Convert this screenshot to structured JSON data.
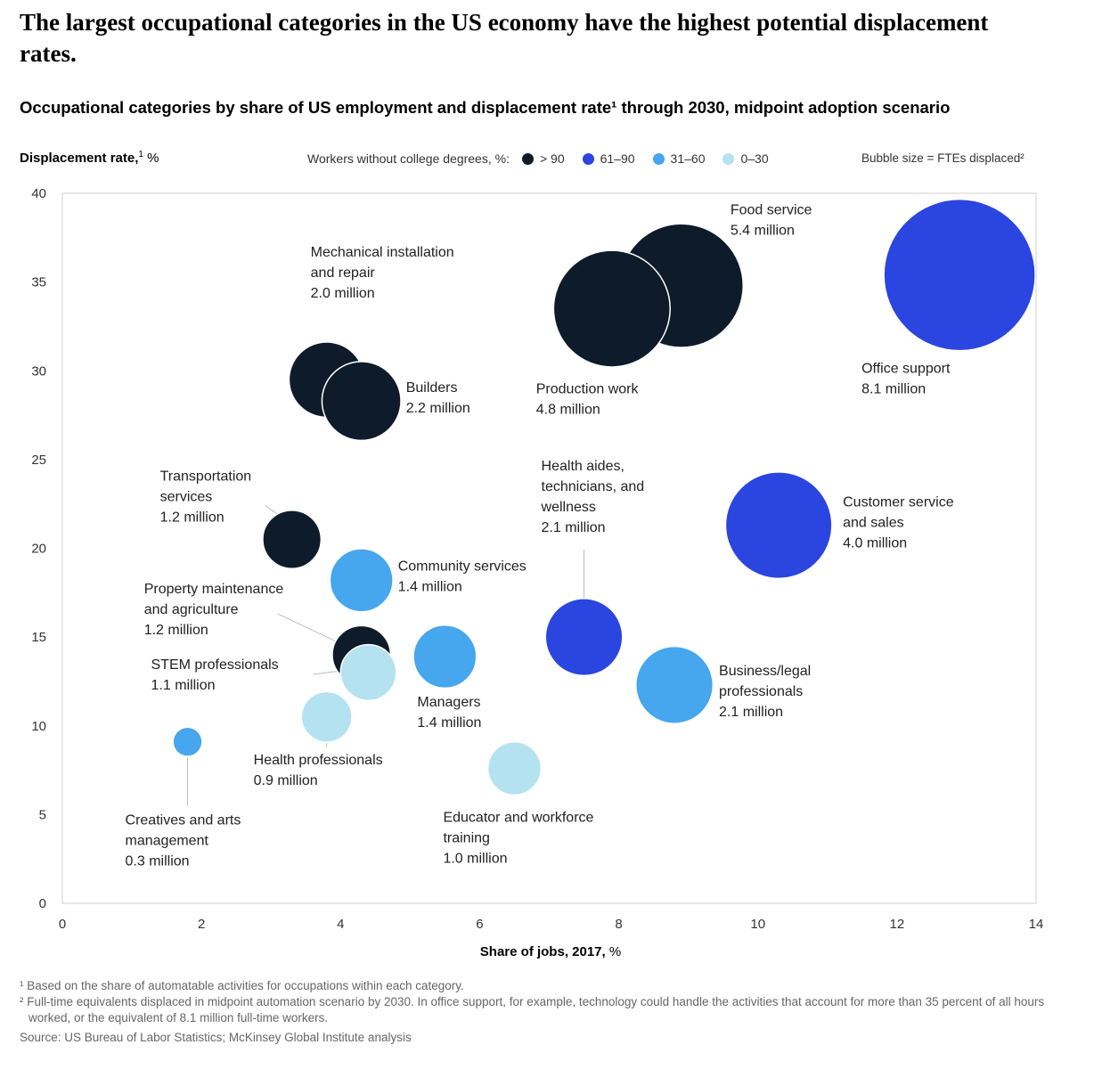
{
  "title": "The largest occupational categories in the US economy have the highest potential displacement rates.",
  "subtitle": "Occupational categories by share of US employment and displacement rate¹ through 2030, midpoint adoption scenario",
  "y_label_bold": "Displacement rate,",
  "y_label_sup": "1",
  "y_label_unit": " %",
  "x_label_bold": "Share of jobs, 2017,",
  "x_label_unit": " %",
  "legend": {
    "title": "Workers without college degrees, %:",
    "items": [
      {
        "label": "> 90",
        "color": "#0d1b2a"
      },
      {
        "label": "61–90",
        "color": "#2a45e0"
      },
      {
        "label": "31–60",
        "color": "#46a6ee"
      },
      {
        "label": "0–30",
        "color": "#b4e2f0"
      }
    ],
    "bubble_size": "Bubble size = FTEs displaced²"
  },
  "footnotes": {
    "f1": "¹ Based on the share of automatable activities for occupations within each category.",
    "f2": "² Full-time equivalents displaced in midpoint automation scenario by 2030. In office support, for example, technology could handle the activities that account for more than 35 percent of all hours worked, or the equivalent of 8.1 million full-time workers.",
    "source": "Source: US Bureau of Labor Statistics; McKinsey Global Institute analysis"
  },
  "chart_data": {
    "type": "scatter",
    "x_label": "Share of jobs, 2017, %",
    "y_label": "Displacement rate, %",
    "xlim": [
      0,
      14
    ],
    "ylim": [
      0,
      40
    ],
    "x_ticks": [
      0,
      2,
      4,
      6,
      8,
      10,
      12,
      14
    ],
    "y_ticks": [
      0,
      5,
      10,
      15,
      20,
      25,
      30,
      35,
      40
    ],
    "bubble_size": "FTEs displaced, million",
    "points": [
      {
        "name": "Office support",
        "x": 12.9,
        "y": 35.4,
        "fte_m": 8.1,
        "group": "61–90",
        "color": "#2a45e0",
        "label": [
          "Office support",
          "8.1 million"
        ]
      },
      {
        "name": "Food service",
        "x": 8.9,
        "y": 34.8,
        "fte_m": 5.4,
        "group": "> 90",
        "color": "#0d1b2a",
        "label": [
          "Food service",
          "5.4 million"
        ]
      },
      {
        "name": "Production work",
        "x": 7.9,
        "y": 33.5,
        "fte_m": 4.8,
        "group": "> 90",
        "color": "#0d1b2a",
        "label": [
          "Production work",
          "4.8 million"
        ]
      },
      {
        "name": "Mechanical installation and repair",
        "x": 3.8,
        "y": 29.5,
        "fte_m": 2.0,
        "group": "> 90",
        "color": "#0d1b2a",
        "label": [
          "Mechanical installation",
          "and repair",
          "2.0 million"
        ]
      },
      {
        "name": "Builders",
        "x": 4.3,
        "y": 28.3,
        "fte_m": 2.2,
        "group": "> 90",
        "color": "#0d1b2a",
        "label": [
          "Builders",
          "2.2 million"
        ]
      },
      {
        "name": "Customer service and sales",
        "x": 10.3,
        "y": 21.3,
        "fte_m": 4.0,
        "group": "61–90",
        "color": "#2a45e0",
        "label": [
          "Customer service",
          "and sales",
          "4.0 million"
        ]
      },
      {
        "name": "Transportation services",
        "x": 3.3,
        "y": 20.5,
        "fte_m": 1.2,
        "group": "> 90",
        "color": "#0d1b2a",
        "label": [
          "Transportation",
          "services",
          "1.2 million"
        ]
      },
      {
        "name": "Community services",
        "x": 4.3,
        "y": 18.2,
        "fte_m": 1.4,
        "group": "31–60",
        "color": "#46a6ee",
        "label": [
          "Community services",
          "1.4 million"
        ]
      },
      {
        "name": "Health aides, technicians, and wellness",
        "x": 7.5,
        "y": 15.0,
        "fte_m": 2.1,
        "group": "61–90",
        "color": "#2a45e0",
        "label": [
          "Health aides,",
          "technicians, and",
          "wellness",
          "2.1 million"
        ]
      },
      {
        "name": "Property maintenance and agriculture",
        "x": 4.3,
        "y": 14.0,
        "fte_m": 1.2,
        "group": "> 90",
        "color": "#0d1b2a",
        "label": [
          "Property maintenance",
          "and agriculture",
          "1.2 million"
        ]
      },
      {
        "name": "Managers",
        "x": 5.5,
        "y": 13.9,
        "fte_m": 1.4,
        "group": "31–60",
        "color": "#46a6ee",
        "label": [
          "Managers",
          "1.4 million"
        ]
      },
      {
        "name": "STEM professionals",
        "x": 4.4,
        "y": 13.0,
        "fte_m": 1.1,
        "group": "0–30",
        "color": "#b4e2f0",
        "label": [
          "STEM professionals",
          "1.1 million"
        ]
      },
      {
        "name": "Business/legal professionals",
        "x": 8.8,
        "y": 12.3,
        "fte_m": 2.1,
        "group": "31–60",
        "color": "#46a6ee",
        "label": [
          "Business/legal",
          "professionals",
          "2.1 million"
        ]
      },
      {
        "name": "Health professionals",
        "x": 3.8,
        "y": 10.5,
        "fte_m": 0.9,
        "group": "0–30",
        "color": "#b4e2f0",
        "label": [
          "Health professionals",
          "0.9 million"
        ]
      },
      {
        "name": "Creatives and arts management",
        "x": 1.8,
        "y": 9.1,
        "fte_m": 0.3,
        "group": "31–60",
        "color": "#46a6ee",
        "label": [
          "Creatives and arts",
          "management",
          "0.3 million"
        ]
      },
      {
        "name": "Educator and workforce training",
        "x": 6.5,
        "y": 7.6,
        "fte_m": 1.0,
        "group": "0–30",
        "color": "#b4e2f0",
        "label": [
          "Educator and workforce",
          "training",
          "1.0 million"
        ]
      }
    ]
  }
}
